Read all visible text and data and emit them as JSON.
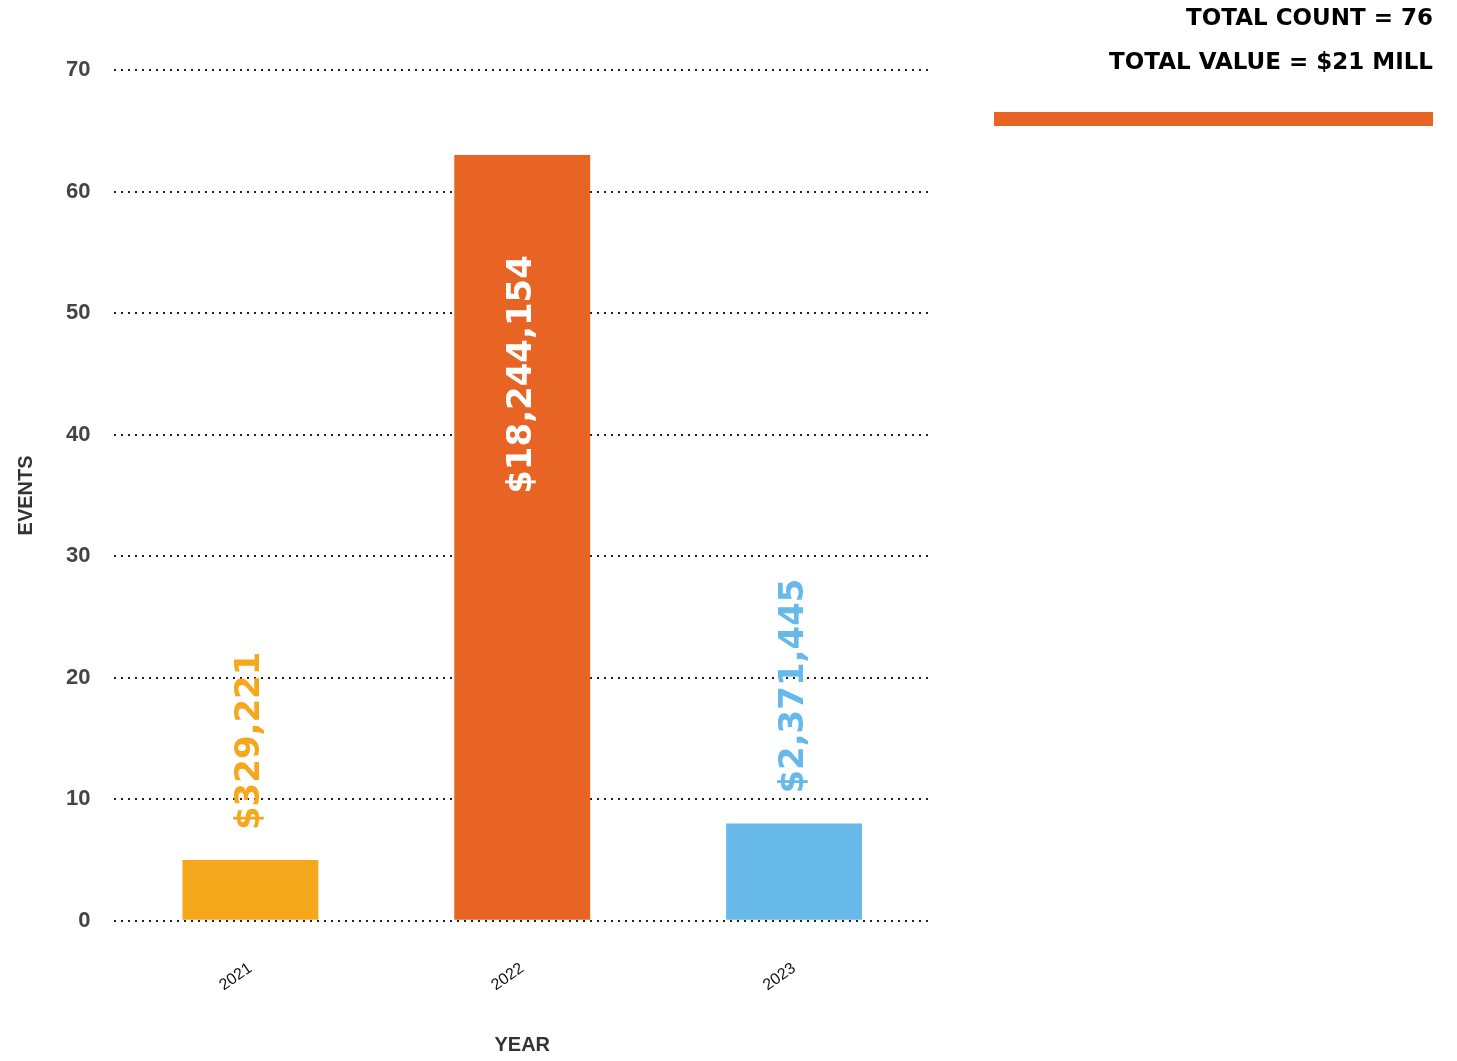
{
  "chart_data": {
    "type": "bar",
    "xlabel": "YEAR",
    "ylabel": "EVENTS",
    "categories": [
      "2021",
      "2022",
      "2023"
    ],
    "values": [
      5,
      63,
      8
    ],
    "colors": [
      "#f5a81c",
      "#e86424",
      "#66b9e8"
    ],
    "ylim": [
      0,
      70
    ],
    "yticks": [
      0,
      10,
      20,
      30,
      40,
      50,
      60,
      70
    ],
    "grid": "y",
    "legend": false,
    "annotations": [
      "TOTAL COUNT = 76",
      "TOTAL VALUE = $21 MILL",
      {
        "text": "$329,221",
        "x": "2021",
        "y": 5
      },
      {
        "text": "$18,244,154",
        "x": "2022",
        "y": 63
      },
      {
        "text": "$2,371,445",
        "x": "2023",
        "y": 8
      }
    ]
  }
}
